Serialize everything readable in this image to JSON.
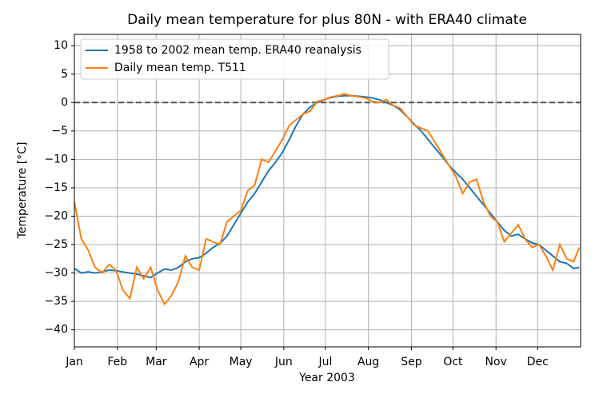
{
  "chart_data": {
    "type": "line",
    "title": "Daily mean temperature for plus 80N - with ERA40 climate",
    "x_label": "Year 2003",
    "y_label": "Temperature [°C]",
    "x": [
      0,
      5,
      10,
      15,
      20,
      25,
      30,
      35,
      40,
      45,
      50,
      55,
      60,
      65,
      70,
      75,
      80,
      85,
      90,
      95,
      100,
      105,
      110,
      115,
      120,
      125,
      130,
      135,
      140,
      145,
      150,
      155,
      160,
      165,
      170,
      175,
      180,
      185,
      190,
      195,
      200,
      205,
      210,
      215,
      220,
      225,
      230,
      235,
      240,
      245,
      250,
      255,
      260,
      265,
      270,
      275,
      280,
      285,
      290,
      295,
      300,
      305,
      310,
      315,
      320,
      325,
      330,
      335,
      340,
      345,
      350,
      355,
      360,
      364
    ],
    "series": [
      {
        "name": "1958 to 2002 mean temp. ERA40 reanalysis",
        "color": "#1f77b4",
        "values": [
          -29.2,
          -30,
          -29.8,
          -30,
          -29.8,
          -29.5,
          -29.6,
          -29.8,
          -30,
          -30.2,
          -30.5,
          -30.8,
          -30,
          -29.3,
          -29.5,
          -29,
          -28,
          -27.5,
          -27.3,
          -26.5,
          -25.5,
          -24.8,
          -23.5,
          -21.5,
          -19.5,
          -17.5,
          -16,
          -14,
          -12,
          -10.5,
          -8.8,
          -6.5,
          -4,
          -2,
          -0.8,
          0,
          0.5,
          0.9,
          1.1,
          1.2,
          1.2,
          1.1,
          1.0,
          0.8,
          0.5,
          0,
          -0.5,
          -1.3,
          -2.5,
          -3.8,
          -5,
          -6.5,
          -8,
          -9.5,
          -11,
          -12.3,
          -13.5,
          -15,
          -16.5,
          -18,
          -19.5,
          -21,
          -22.5,
          -23.5,
          -23.2,
          -24,
          -24.7,
          -25,
          -26,
          -27,
          -28,
          -28.3,
          -29.2,
          -29
        ]
      },
      {
        "name": "Daily mean temp. T511",
        "color": "#ff7f0e",
        "values": [
          -17.5,
          -24,
          -26,
          -29,
          -30,
          -28.5,
          -29.5,
          -33,
          -34.5,
          -29,
          -31,
          -29,
          -33,
          -35.5,
          -34,
          -31.5,
          -27,
          -29,
          -29.5,
          -24,
          -24.5,
          -25,
          -21,
          -20,
          -19,
          -15.5,
          -14.5,
          -10,
          -10.5,
          -8.5,
          -6.5,
          -4,
          -3,
          -2,
          -1.5,
          0.2,
          0.5,
          1,
          1.2,
          1.5,
          1.2,
          1,
          0.8,
          0.2,
          0,
          0.5,
          -0.5,
          -1,
          -2.5,
          -4,
          -4.5,
          -5,
          -7,
          -9,
          -11,
          -13,
          -16,
          -14,
          -13.5,
          -17.5,
          -20,
          -21,
          -24.5,
          -23,
          -21.5,
          -24,
          -25.5,
          -25,
          -27,
          -29.5,
          -25,
          -27.5,
          -28,
          -25.5
        ]
      }
    ],
    "xlim": [
      0,
      365
    ],
    "xticks": [
      {
        "value": 0,
        "label": "Jan"
      },
      {
        "value": 31,
        "label": "Feb"
      },
      {
        "value": 59,
        "label": "Mar"
      },
      {
        "value": 90,
        "label": "Apr"
      },
      {
        "value": 120,
        "label": "May"
      },
      {
        "value": 151,
        "label": "Jun"
      },
      {
        "value": 181,
        "label": "Jul"
      },
      {
        "value": 212,
        "label": "Aug"
      },
      {
        "value": 243,
        "label": "Sep"
      },
      {
        "value": 273,
        "label": "Oct"
      },
      {
        "value": 304,
        "label": "Nov"
      },
      {
        "value": 334,
        "label": "Dec"
      }
    ],
    "ylim": [
      -43,
      12
    ],
    "yticks": [
      {
        "value": -40,
        "label": "−40"
      },
      {
        "value": -35,
        "label": "−35"
      },
      {
        "value": -30,
        "label": "−30"
      },
      {
        "value": -25,
        "label": "−25"
      },
      {
        "value": -20,
        "label": "−20"
      },
      {
        "value": -15,
        "label": "−15"
      },
      {
        "value": -10,
        "label": "−10"
      },
      {
        "value": -5,
        "label": "−5"
      },
      0,
      5,
      10
    ],
    "reference_line": 0,
    "grid": true,
    "legend": "upper-left"
  }
}
